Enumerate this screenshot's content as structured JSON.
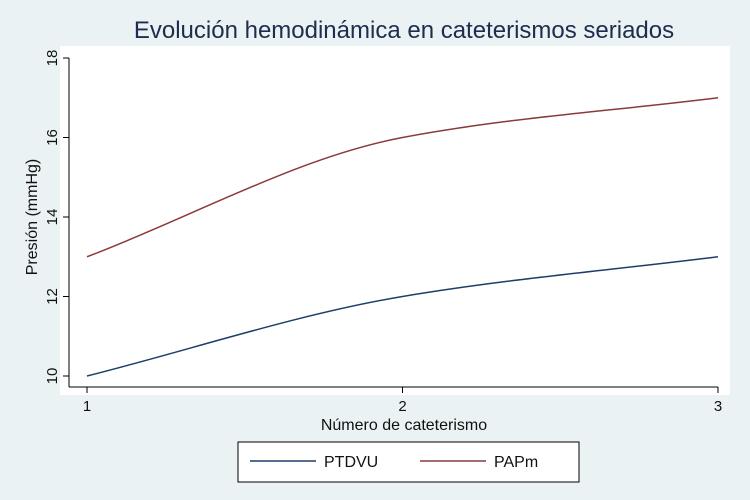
{
  "chart_data": {
    "type": "line",
    "title": "Evolución hemodinámica en cateterismos seriados",
    "xlabel": "Número de cateterismo",
    "ylabel": "Presión (mmHg)",
    "x": [
      1,
      2,
      3
    ],
    "xlim": [
      1,
      3
    ],
    "ylim": [
      10,
      18
    ],
    "xticks": [
      "1",
      "2",
      "3"
    ],
    "yticks": [
      "10",
      "12",
      "14",
      "16",
      "18"
    ],
    "grid": false,
    "legend_position": "bottom",
    "series": [
      {
        "name": "PTDVU",
        "values": [
          10,
          12,
          13
        ],
        "color": "#1f3d6b"
      },
      {
        "name": "PAPm",
        "values": [
          13,
          16,
          17
        ],
        "color": "#8b3a3a"
      }
    ]
  }
}
